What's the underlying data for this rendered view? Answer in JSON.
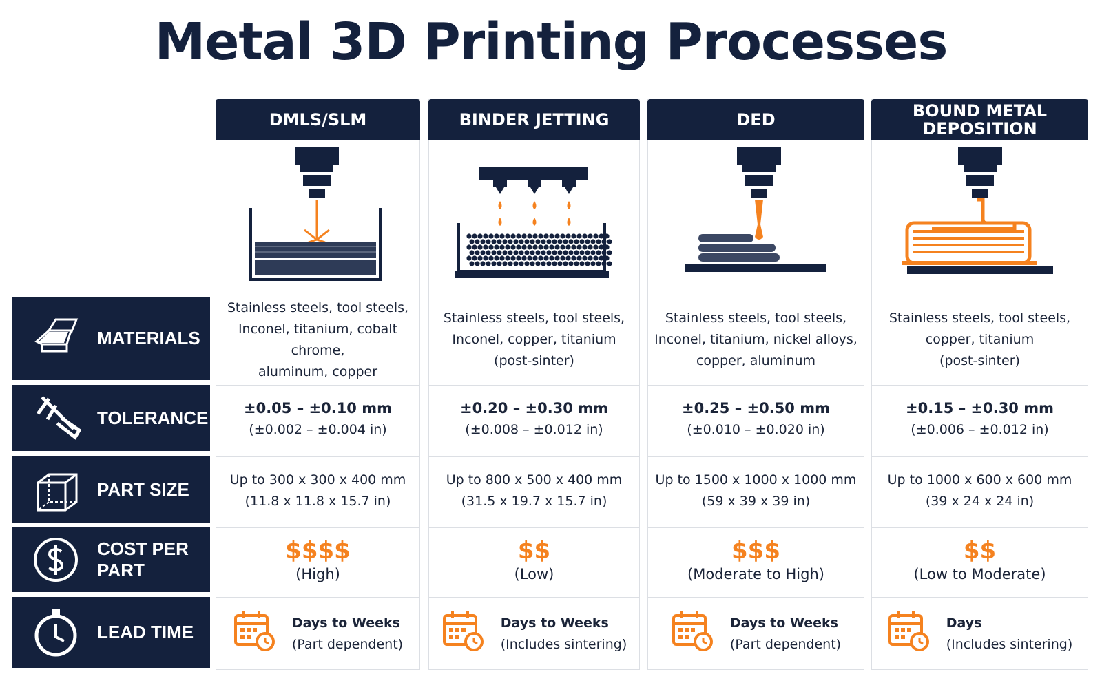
{
  "title": "Metal 3D Printing Processes",
  "columns": [
    "DMLS/SLM",
    "BINDER JETTING",
    "DED",
    "BOUND METAL DEPOSITION"
  ],
  "rows": [
    {
      "label": "MATERIALS",
      "cells": [
        [
          "Stainless steels, tool steels,",
          "Inconel, titanium, cobalt chrome,",
          "aluminum, copper"
        ],
        [
          "Stainless steels, tool steels,",
          "Inconel, copper, titanium",
          "(post-sinter)"
        ],
        [
          "Stainless steels, tool steels,",
          "Inconel, titanium, nickel alloys,",
          "copper, aluminum"
        ],
        [
          "Stainless steels, tool steels,",
          "copper, titanium",
          "(post-sinter)"
        ]
      ]
    },
    {
      "label": "TOLERANCE",
      "cells": [
        [
          "±0.05 – ±0.10 mm",
          "(±0.002 – ±0.004 in)"
        ],
        [
          "±0.20 – ±0.30 mm",
          "(±0.008 – ±0.012 in)"
        ],
        [
          "±0.25 – ±0.50 mm",
          "(±0.010 – ±0.020 in)"
        ],
        [
          "±0.15 – ±0.30 mm",
          "(±0.006 – ±0.012 in)"
        ]
      ]
    },
    {
      "label": "PART SIZE",
      "cells": [
        [
          "Up to 300 x 300 x 400 mm",
          "(11.8 x 11.8 x 15.7 in)"
        ],
        [
          "Up to 800 x 500 x 400 mm",
          "(31.5 x 19.7 x 15.7 in)"
        ],
        [
          "Up to 1500 x 1000 x 1000 mm",
          "(59 x 39 x 39 in)"
        ],
        [
          "Up to 1000 x 600 x 600 mm",
          "(39 x 24 x 24 in)"
        ]
      ]
    },
    {
      "label": "COST PER PART",
      "cells": [
        [
          "$$$$",
          "(High)"
        ],
        [
          "$$",
          "(Low)"
        ],
        [
          "$$$",
          "(Moderate to High)"
        ],
        [
          "$$",
          "(Low to Moderate)"
        ]
      ]
    },
    {
      "label": "LEAD TIME",
      "cells": [
        [
          "Days to Weeks",
          "(Part dependent)"
        ],
        [
          "Days to Weeks",
          "(Includes sintering)"
        ],
        [
          "Days to Weeks",
          "(Part dependent)"
        ],
        [
          "Days",
          "(Includes sintering)"
        ]
      ]
    }
  ]
}
